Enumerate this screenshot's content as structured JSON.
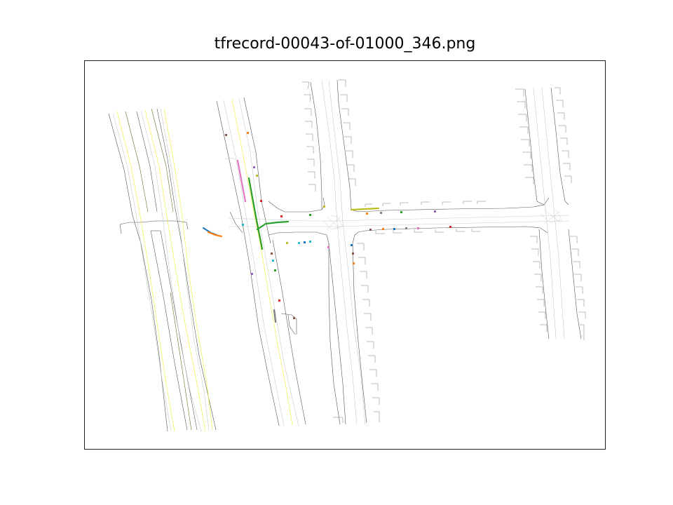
{
  "figure": {
    "title": "tfrecord-00043-of-01000_346.png"
  },
  "colors": {
    "road_edge": "#555555",
    "lane_center": "#b8b8b8",
    "lane_yellow": "#f2f24a",
    "lane_olive": "#6b6b1a",
    "crosswalk": "#cccccc",
    "agent_palette": [
      "#1f77b4",
      "#ff7f0e",
      "#2ca02c",
      "#d62728",
      "#9467bd",
      "#8c564b",
      "#e377c2",
      "#7f7f7f",
      "#bcbd22",
      "#17becf"
    ]
  },
  "map": {
    "show_axes": false,
    "content": "top-down road network with lane centerlines, road edges and agent trajectories"
  }
}
